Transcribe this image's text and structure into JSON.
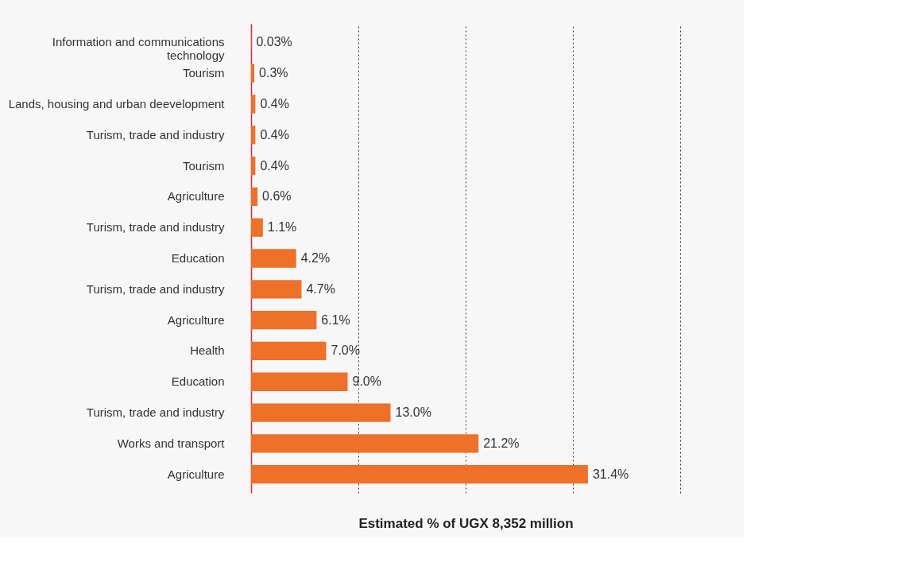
{
  "chart_data": {
    "type": "bar",
    "orientation": "horizontal",
    "xlabel": "Estimated % of UGX 8,352 million",
    "categories": [
      "Information and communications technology",
      "Tourism",
      "Lands, housing and urban deevelopment",
      "Turism, trade and industry",
      "Tourism",
      "Agriculture",
      "Turism, trade and industry",
      "Education",
      "Turism, trade and industry",
      "Agriculture",
      "Health",
      "Education",
      "Turism, trade and industry",
      "Works and transport",
      "Agriculture"
    ],
    "values": [
      0.03,
      0.3,
      0.4,
      0.4,
      0.4,
      0.6,
      1.1,
      4.2,
      4.7,
      6.1,
      7.0,
      9.0,
      13.0,
      21.2,
      31.4
    ],
    "value_labels": [
      "0.03%",
      "0.3%",
      "0.4%",
      "0.4%",
      "0.4%",
      "0.6%",
      "1.1%",
      "4.2%",
      "4.7%",
      "6.1%",
      "7.0%",
      "9.0%",
      "13.0%",
      "21.2%",
      "31.4%"
    ],
    "color": "#ee7029",
    "xlim": [
      0,
      40
    ],
    "xticks": [
      {
        "value": 10,
        "label": null
      },
      {
        "value": 20,
        "label": null
      },
      {
        "value": 30,
        "label": null
      },
      {
        "value": 40,
        "label": null
      }
    ],
    "grid": "x",
    "tick_labels": "y"
  }
}
